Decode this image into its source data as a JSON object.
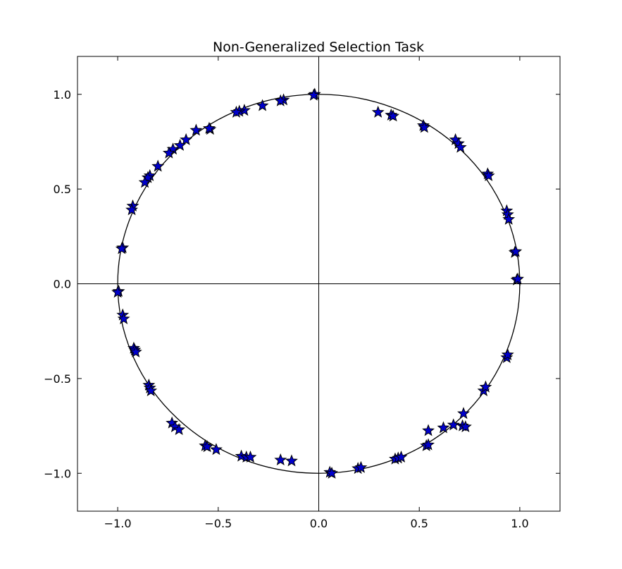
{
  "chart_data": {
    "type": "scatter",
    "title": "Non-Generalized Selection Task",
    "xlabel": "",
    "ylabel": "",
    "xlim": [
      -1.2,
      1.2
    ],
    "ylim": [
      -1.2,
      1.2
    ],
    "xticks": [
      -1.0,
      -0.5,
      0.0,
      0.5,
      1.0
    ],
    "yticks": [
      -1.0,
      -0.5,
      0.0,
      0.5,
      1.0
    ],
    "xtick_labels": [
      "−1.0",
      "−0.5",
      "0.0",
      "0.5",
      "1.0"
    ],
    "ytick_labels": [
      "−1.0",
      "−0.5",
      "0.0",
      "0.5",
      "1.0"
    ],
    "grid": false,
    "reference_circle": {
      "radius": 1.0,
      "color": "#000000"
    },
    "reference_axes": {
      "x": 0,
      "y": 0,
      "color": "#000000"
    },
    "marker": {
      "shape": "star",
      "fill": "#0000cc",
      "edge": "#000000"
    },
    "points": [
      [
        -0.02,
        1.0
      ],
      [
        -0.025,
        0.995
      ],
      [
        -0.175,
        0.97
      ],
      [
        -0.19,
        0.965
      ],
      [
        -0.28,
        0.94
      ],
      [
        -0.37,
        0.915
      ],
      [
        -0.395,
        0.91
      ],
      [
        -0.41,
        0.905
      ],
      [
        -0.54,
        0.815
      ],
      [
        -0.545,
        0.82
      ],
      [
        -0.61,
        0.81
      ],
      [
        -0.66,
        0.76
      ],
      [
        -0.69,
        0.73
      ],
      [
        -0.725,
        0.71
      ],
      [
        -0.745,
        0.69
      ],
      [
        -0.8,
        0.62
      ],
      [
        -0.84,
        0.57
      ],
      [
        -0.85,
        0.56
      ],
      [
        -0.865,
        0.535
      ],
      [
        -0.925,
        0.41
      ],
      [
        -0.93,
        0.39
      ],
      [
        -0.975,
        0.19
      ],
      [
        -0.98,
        0.185
      ],
      [
        -0.995,
        -0.04
      ],
      [
        -1.0,
        -0.045
      ],
      [
        -0.975,
        -0.165
      ],
      [
        -0.97,
        -0.185
      ],
      [
        -0.92,
        -0.34
      ],
      [
        -0.915,
        -0.35
      ],
      [
        -0.91,
        -0.36
      ],
      [
        -0.845,
        -0.535
      ],
      [
        -0.84,
        -0.55
      ],
      [
        -0.835,
        -0.565
      ],
      [
        -0.73,
        -0.735
      ],
      [
        -0.715,
        -0.755
      ],
      [
        -0.695,
        -0.77
      ],
      [
        -0.565,
        -0.855
      ],
      [
        -0.555,
        -0.86
      ],
      [
        -0.51,
        -0.875
      ],
      [
        -0.385,
        -0.91
      ],
      [
        -0.36,
        -0.915
      ],
      [
        -0.34,
        -0.915
      ],
      [
        -0.19,
        -0.93
      ],
      [
        -0.135,
        -0.935
      ],
      [
        0.055,
        -0.995
      ],
      [
        0.065,
        -1.0
      ],
      [
        0.195,
        -0.975
      ],
      [
        0.21,
        -0.97
      ],
      [
        0.38,
        -0.925
      ],
      [
        0.395,
        -0.92
      ],
      [
        0.41,
        -0.915
      ],
      [
        0.535,
        -0.855
      ],
      [
        0.545,
        -0.85
      ],
      [
        0.545,
        -0.775
      ],
      [
        0.62,
        -0.76
      ],
      [
        0.67,
        -0.745
      ],
      [
        0.715,
        -0.75
      ],
      [
        0.73,
        -0.755
      ],
      [
        0.72,
        -0.685
      ],
      [
        0.82,
        -0.565
      ],
      [
        0.83,
        -0.545
      ],
      [
        0.935,
        -0.39
      ],
      [
        0.94,
        -0.375
      ],
      [
        0.985,
        0.02
      ],
      [
        0.99,
        0.025
      ],
      [
        0.975,
        0.165
      ],
      [
        0.98,
        0.17
      ],
      [
        0.935,
        0.385
      ],
      [
        0.94,
        0.365
      ],
      [
        0.945,
        0.34
      ],
      [
        0.84,
        0.58
      ],
      [
        0.845,
        0.57
      ],
      [
        0.68,
        0.76
      ],
      [
        0.695,
        0.74
      ],
      [
        0.705,
        0.72
      ],
      [
        0.52,
        0.835
      ],
      [
        0.525,
        0.825
      ],
      [
        0.36,
        0.89
      ],
      [
        0.37,
        0.885
      ],
      [
        0.295,
        0.905
      ]
    ]
  }
}
